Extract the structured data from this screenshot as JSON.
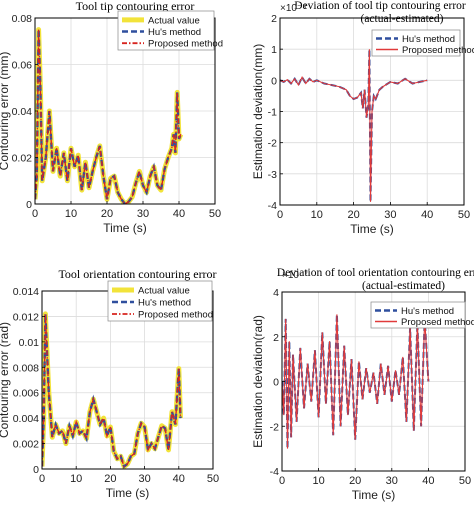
{
  "chart_data": [
    {
      "type": "line",
      "title": "Tool tip contouring error",
      "xlabel": "Time (s)",
      "ylabel": "Contouring error (mm)",
      "xlim": [
        0,
        50
      ],
      "ylim": [
        0,
        0.08
      ],
      "xticks": [
        "0",
        "10",
        "20",
        "30",
        "40",
        "50"
      ],
      "yticks": [
        "0",
        "0.02",
        "0.04",
        "0.06",
        "0.08"
      ],
      "grid": true,
      "legend_position": "top-right",
      "series": [
        {
          "name": "Actual value",
          "color": "#f2e33a",
          "style": "solid-thick",
          "x": [
            0,
            0.5,
            1,
            1.5,
            2,
            3,
            4,
            5,
            6,
            7,
            8,
            9,
            10,
            11,
            12,
            13,
            14,
            15,
            16,
            17,
            18,
            19,
            20,
            21,
            22,
            23,
            24,
            25,
            26,
            27,
            28,
            29,
            30,
            31,
            32,
            33,
            34,
            35,
            36,
            37,
            38,
            38.5,
            39,
            39.5,
            40,
            40.5
          ],
          "values": [
            0.002,
            0.012,
            0.075,
            0.05,
            0.01,
            0.02,
            0.04,
            0.014,
            0.024,
            0.012,
            0.022,
            0.01,
            0.024,
            0.016,
            0.021,
            0.006,
            0.018,
            0.007,
            0.014,
            0.02,
            0.025,
            0.012,
            0.002,
            0.011,
            0.012,
            0.005,
            0.002,
            0.0,
            0.001,
            0.003,
            0.009,
            0.014,
            0.008,
            0.005,
            0.012,
            0.016,
            0.008,
            0.006,
            0.015,
            0.02,
            0.024,
            0.03,
            0.022,
            0.048,
            0.028,
            0.03
          ]
        },
        {
          "name": "Hu's method",
          "color": "#2f4f9e",
          "style": "dashed"
        },
        {
          "name": "Proposed method",
          "color": "#d7241f",
          "style": "dash-dot"
        }
      ]
    },
    {
      "type": "line",
      "title": "Deviation of tool tip contouring error",
      "subtitle": "(actual-estimated)",
      "exponent": "×10⁻⁸",
      "xlabel": "Time (s)",
      "ylabel": "Estimation deviation(mm)",
      "xlim": [
        0,
        50
      ],
      "ylim": [
        -4,
        2
      ],
      "xticks": [
        "0",
        "10",
        "20",
        "30",
        "40",
        "50"
      ],
      "yticks": [
        "-4",
        "-3",
        "-2",
        "-1",
        "0",
        "1",
        "2"
      ],
      "grid": true,
      "legend_position": "top-right",
      "series": [
        {
          "name": "Hu's method",
          "color": "#2f4f9e",
          "style": "dashed"
        },
        {
          "name": "Proposed method",
          "color": "#e03a3a",
          "style": "solid",
          "x": [
            0,
            1,
            2,
            3,
            4,
            5,
            6,
            7,
            8,
            9,
            10,
            12,
            14,
            16,
            18,
            19,
            20,
            21,
            22,
            22.5,
            23,
            23.5,
            24,
            24.3,
            24.6,
            25,
            25.5,
            26,
            27,
            28,
            30,
            32,
            34,
            36,
            38,
            40
          ],
          "values": [
            0,
            -0.05,
            0.02,
            -0.1,
            0.05,
            -0.15,
            0.1,
            -0.1,
            0.05,
            -0.05,
            0.0,
            -0.1,
            -0.15,
            -0.2,
            -0.3,
            -0.5,
            -0.6,
            -0.55,
            -0.4,
            -0.9,
            -0.3,
            -1.2,
            -0.8,
            1.0,
            -3.9,
            -1.0,
            -0.5,
            -0.6,
            -0.3,
            -0.2,
            -0.05,
            -0.1,
            0.05,
            -0.1,
            -0.05,
            0
          ]
        }
      ]
    },
    {
      "type": "line",
      "title": "Tool orientation contouring error",
      "xlabel": "Time (s)",
      "ylabel": "Contouring error (rad)",
      "xlim": [
        0,
        50
      ],
      "ylim": [
        0,
        0.014
      ],
      "xticks": [
        "0",
        "10",
        "20",
        "30",
        "40",
        "50"
      ],
      "yticks": [
        "0",
        "0.002",
        "0.004",
        "0.006",
        "0.008",
        "0.01",
        "0.012",
        "0.014"
      ],
      "grid": true,
      "legend_position": "top-right",
      "series": [
        {
          "name": "Actual value",
          "color": "#f2e33a",
          "style": "solid-thick",
          "x": [
            0,
            0.5,
            1,
            1.5,
            2,
            3,
            4,
            5,
            6,
            7,
            8,
            9,
            10,
            11,
            12,
            13,
            14,
            15,
            16,
            17,
            18,
            19,
            20,
            21,
            22,
            23,
            24,
            25,
            26,
            27,
            28,
            29,
            30,
            31,
            32,
            33,
            34,
            35,
            36,
            37,
            38,
            39,
            40,
            40.5
          ],
          "values": [
            0.0002,
            0.004,
            0.0122,
            0.009,
            0.006,
            0.0025,
            0.0035,
            0.0028,
            0.003,
            0.002,
            0.0034,
            0.0026,
            0.0037,
            0.0028,
            0.003,
            0.0024,
            0.0045,
            0.0055,
            0.0045,
            0.0035,
            0.004,
            0.0026,
            0.0033,
            0.0014,
            0.0008,
            0.001,
            0.0002,
            0.0004,
            0.001,
            0.0012,
            0.0028,
            0.0036,
            0.0033,
            0.0015,
            0.002,
            0.0016,
            0.0025,
            0.0034,
            0.0032,
            0.0015,
            0.0045,
            0.0035,
            0.0079,
            0.004
          ]
        },
        {
          "name": "Hu's method",
          "color": "#2f4f9e",
          "style": "dashed"
        },
        {
          "name": "Proposed method",
          "color": "#d7241f",
          "style": "dash-dot"
        }
      ]
    },
    {
      "type": "line",
      "title": "Deviation of tool orientation contouring error",
      "subtitle": "(actual-estimated)",
      "exponent": "×10⁻⁷",
      "xlabel": "Time (s)",
      "ylabel": "Estimation deviation(rad)",
      "xlim": [
        0,
        50
      ],
      "ylim": [
        -4,
        4
      ],
      "xticks": [
        "0",
        "10",
        "20",
        "30",
        "40",
        "50"
      ],
      "yticks": [
        "-4",
        "-2",
        "0",
        "2",
        "4"
      ],
      "grid": true,
      "legend_position": "top-right",
      "series": [
        {
          "name": "Hu's method",
          "color": "#2f4f9e",
          "style": "dashed"
        },
        {
          "name": "Proposed method",
          "color": "#e03a3a",
          "style": "solid",
          "x": [
            0,
            0.5,
            1,
            1.5,
            2,
            2.5,
            3,
            4,
            5,
            6,
            7,
            8,
            9,
            10,
            11,
            12,
            13,
            14,
            15,
            16,
            17,
            18,
            19,
            20,
            21,
            22,
            23,
            24,
            25,
            26,
            27,
            28,
            29,
            30,
            31,
            32,
            33,
            34,
            35,
            36,
            37,
            38,
            39,
            40
          ],
          "values": [
            0,
            -1.5,
            2.8,
            -3.0,
            1.8,
            -2.5,
            1.2,
            -1.8,
            1.5,
            -1.2,
            0.8,
            -0.9,
            1.4,
            -1.6,
            2.2,
            -1.0,
            1.8,
            -2.4,
            3.0,
            -2.0,
            1.6,
            -1.5,
            1.0,
            -2.6,
            0.9,
            -0.8,
            0.6,
            -0.5,
            0.4,
            -1.0,
            0.8,
            -0.6,
            0.7,
            -0.9,
            0.5,
            -0.6,
            1.1,
            -1.8,
            2.4,
            -2.2,
            2.6,
            -2.0,
            2.8,
            0
          ]
        }
      ]
    }
  ]
}
